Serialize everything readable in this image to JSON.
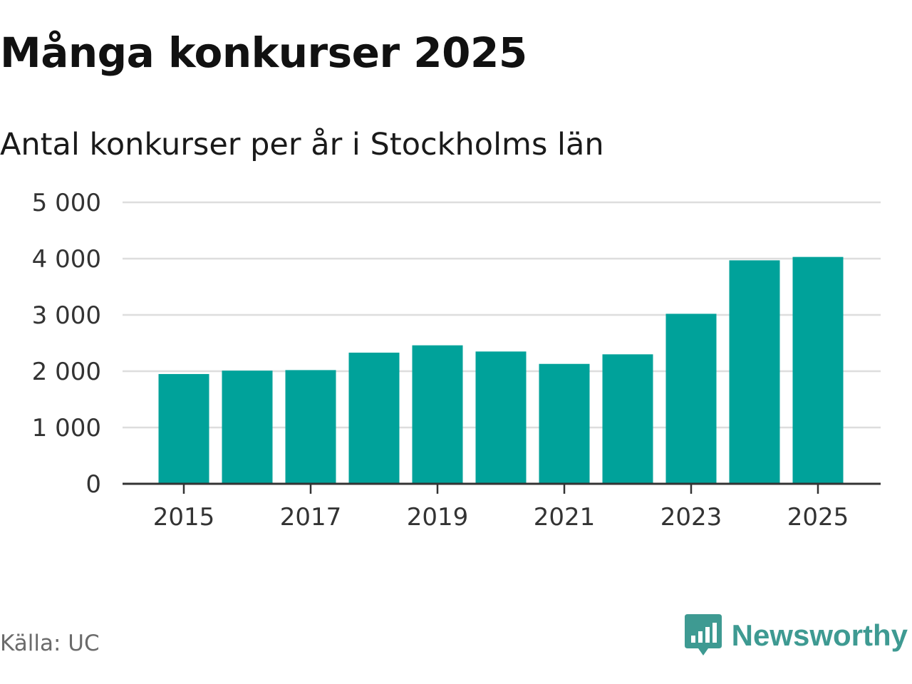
{
  "header": {
    "title": "Många konkurser 2025",
    "subtitle": "Antal konkurser per år i Stockholms län"
  },
  "footer": {
    "source": "Källa: UC",
    "brand": "Newsworthy"
  },
  "colors": {
    "bar": "#00a29a",
    "grid": "#dddddd",
    "axis": "#333333",
    "brand": "#3e9a92"
  },
  "icons": {
    "brand_logo": "bar-chart-speech-bubble-icon"
  },
  "chart_data": {
    "type": "bar",
    "categories": [
      "2015",
      "2016",
      "2017",
      "2018",
      "2019",
      "2020",
      "2021",
      "2022",
      "2023",
      "2024",
      "2025"
    ],
    "values": [
      1950,
      2010,
      2020,
      2330,
      2460,
      2350,
      2130,
      2300,
      3020,
      3970,
      4030
    ],
    "x_tick_labels": [
      "2015",
      "2017",
      "2019",
      "2021",
      "2023",
      "2025"
    ],
    "y_ticks": [
      0,
      1000,
      2000,
      3000,
      4000,
      5000
    ],
    "y_tick_labels": [
      "0",
      "1 000",
      "2 000",
      "3 000",
      "4 000",
      "5 000"
    ],
    "ylim": [
      0,
      5000
    ],
    "grid": true,
    "legend": "none"
  }
}
